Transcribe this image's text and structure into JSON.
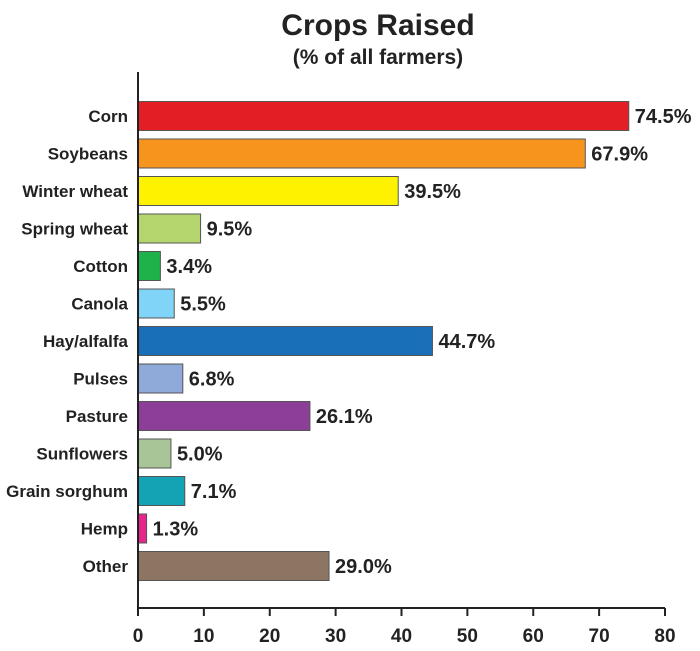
{
  "chart_data": {
    "type": "bar",
    "orientation": "horizontal",
    "title": "Crops Raised",
    "subtitle": "(% of all farmers)",
    "xlabel": "",
    "ylabel": "",
    "xlim": [
      0,
      80
    ],
    "x_ticks": [
      "0",
      "10",
      "20",
      "30",
      "40",
      "50",
      "60",
      "70",
      "80"
    ],
    "categories": [
      "Corn",
      "Soybeans",
      "Winter wheat",
      "Spring wheat",
      "Cotton",
      "Canola",
      "Hay/alfalfa",
      "Pulses",
      "Pasture",
      "Sunflowers",
      "Grain sorghum",
      "Hemp",
      "Other"
    ],
    "values": [
      74.5,
      67.9,
      39.5,
      9.5,
      3.4,
      5.5,
      44.7,
      6.8,
      26.1,
      5.0,
      7.1,
      1.3,
      29.0
    ],
    "value_labels": [
      "74.5%",
      "67.9%",
      "39.5%",
      "9.5%",
      "3.4%",
      "5.5%",
      "44.7%",
      "6.8%",
      "26.1%",
      "5.0%",
      "7.1%",
      "1.3%",
      "29.0%"
    ],
    "colors": [
      "#e31e24",
      "#f7941d",
      "#fff200",
      "#b5d66e",
      "#1db34a",
      "#7fd4f7",
      "#1a6fb9",
      "#8fa9d8",
      "#8c3f97",
      "#a7c596",
      "#14a3b4",
      "#e6268c",
      "#8d7563"
    ],
    "grid": false
  }
}
